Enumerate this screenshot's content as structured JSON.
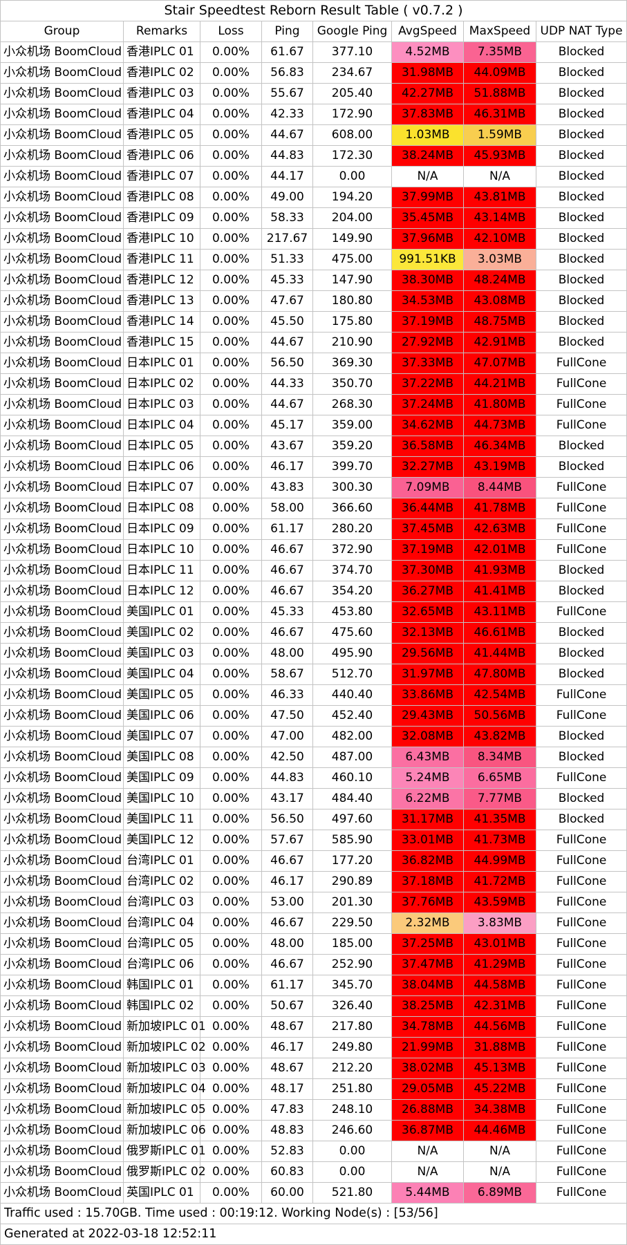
{
  "chart_data": {
    "type": "table",
    "title": "Stair Speedtest Reborn Result Table ( v0.7.2 )",
    "columns": [
      "Group",
      "Remarks",
      "Loss",
      "Ping",
      "Google Ping",
      "AvgSpeed",
      "MaxSpeed",
      "UDP NAT Type"
    ],
    "palette": {
      "high_speed_red": "#FF0000",
      "yellow_1mb": "#FBE22D",
      "gold_1_5mb": "#F8CE4F",
      "orange_2mb": "#FBCA7B",
      "salmon_3mb": "#FAAF98",
      "pink_low": "#FD8FC0",
      "pink_high": "#F9527D",
      "na_white": "#FFFFFF"
    },
    "rows": [
      {
        "group": "小众机场 BoomCloud",
        "remarks": "香港IPLC 01",
        "loss": "0.00%",
        "ping": "61.67",
        "google_ping": "377.10",
        "avg_speed": "4.52MB",
        "max_speed": "7.35MB",
        "nat_type": "Blocked",
        "avg_color": "#FD8FC0",
        "max_color": "#FA6392"
      },
      {
        "group": "小众机场 BoomCloud",
        "remarks": "香港IPLC 02",
        "loss": "0.00%",
        "ping": "56.83",
        "google_ping": "234.67",
        "avg_speed": "31.98MB",
        "max_speed": "44.09MB",
        "nat_type": "Blocked",
        "avg_color": "#FF0000",
        "max_color": "#FF0000"
      },
      {
        "group": "小众机场 BoomCloud",
        "remarks": "香港IPLC 03",
        "loss": "0.00%",
        "ping": "55.67",
        "google_ping": "205.40",
        "avg_speed": "42.27MB",
        "max_speed": "51.88MB",
        "nat_type": "Blocked",
        "avg_color": "#FF0000",
        "max_color": "#FF0000"
      },
      {
        "group": "小众机场 BoomCloud",
        "remarks": "香港IPLC 04",
        "loss": "0.00%",
        "ping": "42.33",
        "google_ping": "172.90",
        "avg_speed": "37.83MB",
        "max_speed": "46.31MB",
        "nat_type": "Blocked",
        "avg_color": "#FF0000",
        "max_color": "#FF0000"
      },
      {
        "group": "小众机场 BoomCloud",
        "remarks": "香港IPLC 05",
        "loss": "0.00%",
        "ping": "44.67",
        "google_ping": "608.00",
        "avg_speed": "1.03MB",
        "max_speed": "1.59MB",
        "nat_type": "Blocked",
        "avg_color": "#FBE22D",
        "max_color": "#F8CE4F"
      },
      {
        "group": "小众机场 BoomCloud",
        "remarks": "香港IPLC 06",
        "loss": "0.00%",
        "ping": "44.83",
        "google_ping": "172.30",
        "avg_speed": "38.24MB",
        "max_speed": "45.93MB",
        "nat_type": "Blocked",
        "avg_color": "#FF0000",
        "max_color": "#FF0000"
      },
      {
        "group": "小众机场 BoomCloud",
        "remarks": "香港IPLC 07",
        "loss": "0.00%",
        "ping": "44.17",
        "google_ping": "0.00",
        "avg_speed": "N/A",
        "max_speed": "N/A",
        "nat_type": "Blocked",
        "avg_color": "#FFFFFF",
        "max_color": "#FFFFFF"
      },
      {
        "group": "小众机场 BoomCloud",
        "remarks": "香港IPLC 08",
        "loss": "0.00%",
        "ping": "49.00",
        "google_ping": "194.20",
        "avg_speed": "37.99MB",
        "max_speed": "43.81MB",
        "nat_type": "Blocked",
        "avg_color": "#FF0000",
        "max_color": "#FF0000"
      },
      {
        "group": "小众机场 BoomCloud",
        "remarks": "香港IPLC 09",
        "loss": "0.00%",
        "ping": "58.33",
        "google_ping": "204.00",
        "avg_speed": "35.45MB",
        "max_speed": "43.14MB",
        "nat_type": "Blocked",
        "avg_color": "#FF0000",
        "max_color": "#FF0000"
      },
      {
        "group": "小众机场 BoomCloud",
        "remarks": "香港IPLC 10",
        "loss": "0.00%",
        "ping": "217.67",
        "google_ping": "149.90",
        "avg_speed": "37.96MB",
        "max_speed": "42.10MB",
        "nat_type": "Blocked",
        "avg_color": "#FF0000",
        "max_color": "#FF0000"
      },
      {
        "group": "小众机场 BoomCloud",
        "remarks": "香港IPLC 11",
        "loss": "0.00%",
        "ping": "51.33",
        "google_ping": "475.00",
        "avg_speed": "991.51KB",
        "max_speed": "3.03MB",
        "nat_type": "Blocked",
        "avg_color": "#FBE73A",
        "max_color": "#FAAF98"
      },
      {
        "group": "小众机场 BoomCloud",
        "remarks": "香港IPLC 12",
        "loss": "0.00%",
        "ping": "45.33",
        "google_ping": "147.90",
        "avg_speed": "38.30MB",
        "max_speed": "48.24MB",
        "nat_type": "Blocked",
        "avg_color": "#FF0000",
        "max_color": "#FF0000"
      },
      {
        "group": "小众机场 BoomCloud",
        "remarks": "香港IPLC 13",
        "loss": "0.00%",
        "ping": "47.67",
        "google_ping": "180.80",
        "avg_speed": "34.53MB",
        "max_speed": "43.08MB",
        "nat_type": "Blocked",
        "avg_color": "#FF0000",
        "max_color": "#FF0000"
      },
      {
        "group": "小众机场 BoomCloud",
        "remarks": "香港IPLC 14",
        "loss": "0.00%",
        "ping": "45.50",
        "google_ping": "175.80",
        "avg_speed": "37.19MB",
        "max_speed": "48.75MB",
        "nat_type": "Blocked",
        "avg_color": "#FF0000",
        "max_color": "#FF0000"
      },
      {
        "group": "小众机场 BoomCloud",
        "remarks": "香港IPLC 15",
        "loss": "0.00%",
        "ping": "44.67",
        "google_ping": "210.90",
        "avg_speed": "27.92MB",
        "max_speed": "42.91MB",
        "nat_type": "Blocked",
        "avg_color": "#FF0000",
        "max_color": "#FF0000"
      },
      {
        "group": "小众机场 BoomCloud",
        "remarks": "日本IPLC 01",
        "loss": "0.00%",
        "ping": "56.50",
        "google_ping": "369.30",
        "avg_speed": "37.33MB",
        "max_speed": "47.07MB",
        "nat_type": "FullCone",
        "avg_color": "#FF0000",
        "max_color": "#FF0000"
      },
      {
        "group": "小众机场 BoomCloud",
        "remarks": "日本IPLC 02",
        "loss": "0.00%",
        "ping": "44.33",
        "google_ping": "350.70",
        "avg_speed": "37.22MB",
        "max_speed": "44.21MB",
        "nat_type": "FullCone",
        "avg_color": "#FF0000",
        "max_color": "#FF0000"
      },
      {
        "group": "小众机场 BoomCloud",
        "remarks": "日本IPLC 03",
        "loss": "0.00%",
        "ping": "44.67",
        "google_ping": "268.30",
        "avg_speed": "37.24MB",
        "max_speed": "41.80MB",
        "nat_type": "FullCone",
        "avg_color": "#FF0000",
        "max_color": "#FF0000"
      },
      {
        "group": "小众机场 BoomCloud",
        "remarks": "日本IPLC 04",
        "loss": "0.00%",
        "ping": "45.17",
        "google_ping": "359.00",
        "avg_speed": "34.62MB",
        "max_speed": "44.73MB",
        "nat_type": "FullCone",
        "avg_color": "#FF0000",
        "max_color": "#FF0000"
      },
      {
        "group": "小众机场 BoomCloud",
        "remarks": "日本IPLC 05",
        "loss": "0.00%",
        "ping": "43.67",
        "google_ping": "359.20",
        "avg_speed": "36.58MB",
        "max_speed": "46.34MB",
        "nat_type": "Blocked",
        "avg_color": "#FF0000",
        "max_color": "#FF0000"
      },
      {
        "group": "小众机场 BoomCloud",
        "remarks": "日本IPLC 06",
        "loss": "0.00%",
        "ping": "46.17",
        "google_ping": "399.70",
        "avg_speed": "32.27MB",
        "max_speed": "43.19MB",
        "nat_type": "Blocked",
        "avg_color": "#FF0000",
        "max_color": "#FF0000"
      },
      {
        "group": "小众机场 BoomCloud",
        "remarks": "日本IPLC 07",
        "loss": "0.00%",
        "ping": "43.83",
        "google_ping": "300.30",
        "avg_speed": "7.09MB",
        "max_speed": "8.44MB",
        "nat_type": "FullCone",
        "avg_color": "#FA6193",
        "max_color": "#F9527D"
      },
      {
        "group": "小众机场 BoomCloud",
        "remarks": "日本IPLC 08",
        "loss": "0.00%",
        "ping": "58.00",
        "google_ping": "366.60",
        "avg_speed": "36.44MB",
        "max_speed": "41.78MB",
        "nat_type": "FullCone",
        "avg_color": "#FF0000",
        "max_color": "#FF0000"
      },
      {
        "group": "小众机场 BoomCloud",
        "remarks": "日本IPLC 09",
        "loss": "0.00%",
        "ping": "61.17",
        "google_ping": "280.20",
        "avg_speed": "37.45MB",
        "max_speed": "42.63MB",
        "nat_type": "FullCone",
        "avg_color": "#FF0000",
        "max_color": "#FF0000"
      },
      {
        "group": "小众机场 BoomCloud",
        "remarks": "日本IPLC 10",
        "loss": "0.00%",
        "ping": "46.67",
        "google_ping": "372.90",
        "avg_speed": "37.19MB",
        "max_speed": "42.01MB",
        "nat_type": "FullCone",
        "avg_color": "#FF0000",
        "max_color": "#FF0000"
      },
      {
        "group": "小众机场 BoomCloud",
        "remarks": "日本IPLC 11",
        "loss": "0.00%",
        "ping": "46.67",
        "google_ping": "374.70",
        "avg_speed": "37.30MB",
        "max_speed": "41.93MB",
        "nat_type": "Blocked",
        "avg_color": "#FF0000",
        "max_color": "#FF0000"
      },
      {
        "group": "小众机场 BoomCloud",
        "remarks": "日本IPLC 12",
        "loss": "0.00%",
        "ping": "46.67",
        "google_ping": "354.20",
        "avg_speed": "36.27MB",
        "max_speed": "41.41MB",
        "nat_type": "Blocked",
        "avg_color": "#FF0000",
        "max_color": "#FF0000"
      },
      {
        "group": "小众机场 BoomCloud",
        "remarks": "美国IPLC 01",
        "loss": "0.00%",
        "ping": "45.33",
        "google_ping": "453.80",
        "avg_speed": "32.65MB",
        "max_speed": "43.11MB",
        "nat_type": "FullCone",
        "avg_color": "#FF0000",
        "max_color": "#FF0000"
      },
      {
        "group": "小众机场 BoomCloud",
        "remarks": "美国IPLC 02",
        "loss": "0.00%",
        "ping": "46.67",
        "google_ping": "475.60",
        "avg_speed": "32.13MB",
        "max_speed": "46.61MB",
        "nat_type": "Blocked",
        "avg_color": "#FF0000",
        "max_color": "#FF0000"
      },
      {
        "group": "小众机场 BoomCloud",
        "remarks": "美国IPLC 03",
        "loss": "0.00%",
        "ping": "48.00",
        "google_ping": "495.90",
        "avg_speed": "29.56MB",
        "max_speed": "41.44MB",
        "nat_type": "Blocked",
        "avg_color": "#FF0000",
        "max_color": "#FF0000"
      },
      {
        "group": "小众机场 BoomCloud",
        "remarks": "美国IPLC 04",
        "loss": "0.00%",
        "ping": "58.67",
        "google_ping": "512.70",
        "avg_speed": "31.97MB",
        "max_speed": "47.80MB",
        "nat_type": "Blocked",
        "avg_color": "#FF0000",
        "max_color": "#FF0000"
      },
      {
        "group": "小众机场 BoomCloud",
        "remarks": "美国IPLC 05",
        "loss": "0.00%",
        "ping": "46.33",
        "google_ping": "440.40",
        "avg_speed": "33.86MB",
        "max_speed": "42.54MB",
        "nat_type": "FullCone",
        "avg_color": "#FF0000",
        "max_color": "#FF0000"
      },
      {
        "group": "小众机场 BoomCloud",
        "remarks": "美国IPLC 06",
        "loss": "0.00%",
        "ping": "47.50",
        "google_ping": "452.40",
        "avg_speed": "29.43MB",
        "max_speed": "50.56MB",
        "nat_type": "FullCone",
        "avg_color": "#FF0000",
        "max_color": "#FF0000"
      },
      {
        "group": "小众机场 BoomCloud",
        "remarks": "美国IPLC 07",
        "loss": "0.00%",
        "ping": "47.00",
        "google_ping": "482.00",
        "avg_speed": "32.08MB",
        "max_speed": "43.82MB",
        "nat_type": "Blocked",
        "avg_color": "#FF0000",
        "max_color": "#FF0000"
      },
      {
        "group": "小众机场 BoomCloud",
        "remarks": "美国IPLC 08",
        "loss": "0.00%",
        "ping": "42.50",
        "google_ping": "487.00",
        "avg_speed": "6.43MB",
        "max_speed": "8.34MB",
        "nat_type": "Blocked",
        "avg_color": "#FB6FA2",
        "max_color": "#F95580"
      },
      {
        "group": "小众机场 BoomCloud",
        "remarks": "美国IPLC 09",
        "loss": "0.00%",
        "ping": "44.83",
        "google_ping": "460.10",
        "avg_speed": "5.24MB",
        "max_speed": "6.65MB",
        "nat_type": "FullCone",
        "avg_color": "#FC85B7",
        "max_color": "#FB6D9F"
      },
      {
        "group": "小众机场 BoomCloud",
        "remarks": "美国IPLC 10",
        "loss": "0.00%",
        "ping": "43.17",
        "google_ping": "484.40",
        "avg_speed": "6.22MB",
        "max_speed": "7.77MB",
        "nat_type": "Blocked",
        "avg_color": "#FB74A6",
        "max_color": "#FA5A88"
      },
      {
        "group": "小众机场 BoomCloud",
        "remarks": "美国IPLC 11",
        "loss": "0.00%",
        "ping": "56.50",
        "google_ping": "497.60",
        "avg_speed": "31.17MB",
        "max_speed": "41.35MB",
        "nat_type": "Blocked",
        "avg_color": "#FF0000",
        "max_color": "#FF0000"
      },
      {
        "group": "小众机场 BoomCloud",
        "remarks": "美国IPLC 12",
        "loss": "0.00%",
        "ping": "57.67",
        "google_ping": "585.90",
        "avg_speed": "33.01MB",
        "max_speed": "41.73MB",
        "nat_type": "FullCone",
        "avg_color": "#FF0000",
        "max_color": "#FF0000"
      },
      {
        "group": "小众机场 BoomCloud",
        "remarks": "台湾IPLC 01",
        "loss": "0.00%",
        "ping": "46.67",
        "google_ping": "177.20",
        "avg_speed": "36.82MB",
        "max_speed": "44.99MB",
        "nat_type": "FullCone",
        "avg_color": "#FF0000",
        "max_color": "#FF0000"
      },
      {
        "group": "小众机场 BoomCloud",
        "remarks": "台湾IPLC 02",
        "loss": "0.00%",
        "ping": "46.17",
        "google_ping": "290.89",
        "avg_speed": "37.18MB",
        "max_speed": "41.72MB",
        "nat_type": "FullCone",
        "avg_color": "#FF0000",
        "max_color": "#FF0000"
      },
      {
        "group": "小众机场 BoomCloud",
        "remarks": "台湾IPLC 03",
        "loss": "0.00%",
        "ping": "53.00",
        "google_ping": "201.30",
        "avg_speed": "37.76MB",
        "max_speed": "43.59MB",
        "nat_type": "FullCone",
        "avg_color": "#FF0000",
        "max_color": "#FF0000"
      },
      {
        "group": "小众机场 BoomCloud",
        "remarks": "台湾IPLC 04",
        "loss": "0.00%",
        "ping": "46.67",
        "google_ping": "229.50",
        "avg_speed": "2.32MB",
        "max_speed": "3.83MB",
        "nat_type": "FullCone",
        "avg_color": "#FBCA7B",
        "max_color": "#FB9EC4"
      },
      {
        "group": "小众机场 BoomCloud",
        "remarks": "台湾IPLC 05",
        "loss": "0.00%",
        "ping": "48.00",
        "google_ping": "185.00",
        "avg_speed": "37.25MB",
        "max_speed": "43.01MB",
        "nat_type": "FullCone",
        "avg_color": "#FF0000",
        "max_color": "#FF0000"
      },
      {
        "group": "小众机场 BoomCloud",
        "remarks": "台湾IPLC 06",
        "loss": "0.00%",
        "ping": "46.67",
        "google_ping": "252.90",
        "avg_speed": "37.47MB",
        "max_speed": "41.29MB",
        "nat_type": "FullCone",
        "avg_color": "#FF0000",
        "max_color": "#FF0000"
      },
      {
        "group": "小众机场 BoomCloud",
        "remarks": "韩国IPLC 01",
        "loss": "0.00%",
        "ping": "61.17",
        "google_ping": "345.70",
        "avg_speed": "38.04MB",
        "max_speed": "44.58MB",
        "nat_type": "FullCone",
        "avg_color": "#FF0000",
        "max_color": "#FF0000"
      },
      {
        "group": "小众机场 BoomCloud",
        "remarks": "韩国IPLC 02",
        "loss": "0.00%",
        "ping": "50.67",
        "google_ping": "326.40",
        "avg_speed": "38.25MB",
        "max_speed": "42.31MB",
        "nat_type": "FullCone",
        "avg_color": "#FF0000",
        "max_color": "#FF0000"
      },
      {
        "group": "小众机场 BoomCloud",
        "remarks": "新加坡IPLC 01",
        "loss": "0.00%",
        "ping": "48.67",
        "google_ping": "217.80",
        "avg_speed": "34.78MB",
        "max_speed": "44.56MB",
        "nat_type": "FullCone",
        "avg_color": "#FF0000",
        "max_color": "#FF0000"
      },
      {
        "group": "小众机场 BoomCloud",
        "remarks": "新加坡IPLC 02",
        "loss": "0.00%",
        "ping": "46.17",
        "google_ping": "249.80",
        "avg_speed": "21.99MB",
        "max_speed": "31.88MB",
        "nat_type": "FullCone",
        "avg_color": "#FF0000",
        "max_color": "#FF0000"
      },
      {
        "group": "小众机场 BoomCloud",
        "remarks": "新加坡IPLC 03",
        "loss": "0.00%",
        "ping": "48.67",
        "google_ping": "212.20",
        "avg_speed": "38.02MB",
        "max_speed": "45.13MB",
        "nat_type": "FullCone",
        "avg_color": "#FF0000",
        "max_color": "#FF0000"
      },
      {
        "group": "小众机场 BoomCloud",
        "remarks": "新加坡IPLC 04",
        "loss": "0.00%",
        "ping": "48.17",
        "google_ping": "251.80",
        "avg_speed": "29.05MB",
        "max_speed": "45.22MB",
        "nat_type": "FullCone",
        "avg_color": "#FF0000",
        "max_color": "#FF0000"
      },
      {
        "group": "小众机场 BoomCloud",
        "remarks": "新加坡IPLC 05",
        "loss": "0.00%",
        "ping": "47.83",
        "google_ping": "248.10",
        "avg_speed": "26.88MB",
        "max_speed": "34.38MB",
        "nat_type": "FullCone",
        "avg_color": "#FF0000",
        "max_color": "#FF0000"
      },
      {
        "group": "小众机场 BoomCloud",
        "remarks": "新加坡IPLC 06",
        "loss": "0.00%",
        "ping": "48.83",
        "google_ping": "246.60",
        "avg_speed": "36.87MB",
        "max_speed": "44.46MB",
        "nat_type": "FullCone",
        "avg_color": "#FF0000",
        "max_color": "#FF0000"
      },
      {
        "group": "小众机场 BoomCloud",
        "remarks": "俄罗斯IPLC 01",
        "loss": "0.00%",
        "ping": "52.83",
        "google_ping": "0.00",
        "avg_speed": "N/A",
        "max_speed": "N/A",
        "nat_type": "FullCone",
        "avg_color": "#FFFFFF",
        "max_color": "#FFFFFF"
      },
      {
        "group": "小众机场 BoomCloud",
        "remarks": "俄罗斯IPLC 02",
        "loss": "0.00%",
        "ping": "60.83",
        "google_ping": "0.00",
        "avg_speed": "N/A",
        "max_speed": "N/A",
        "nat_type": "FullCone",
        "avg_color": "#FFFFFF",
        "max_color": "#FFFFFF"
      },
      {
        "group": "小众机场 BoomCloud",
        "remarks": "英国IPLC 01",
        "loss": "0.00%",
        "ping": "60.00",
        "google_ping": "521.80",
        "avg_speed": "5.44MB",
        "max_speed": "6.89MB",
        "nat_type": "FullCone",
        "avg_color": "#FC81B5",
        "max_color": "#FA6897"
      }
    ],
    "footer_summary": "Traffic used : 15.70GB. Time used : 00:19:12. Working Node(s) : [53/56]",
    "footer_generated": "Generated at 2022-03-18 12:52:11"
  }
}
